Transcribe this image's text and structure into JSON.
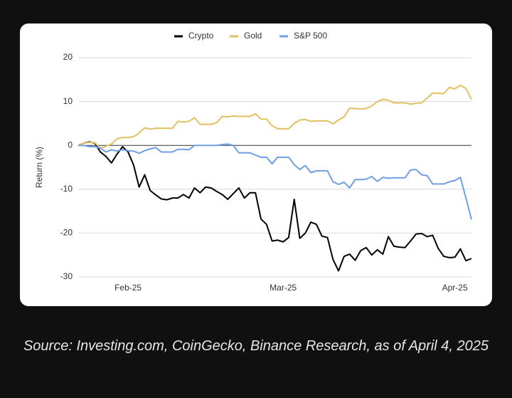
{
  "chart_data": {
    "type": "line",
    "categories": [
      null,
      null,
      null,
      null,
      null,
      null,
      null,
      null,
      null,
      "Feb-25",
      null,
      null,
      null,
      null,
      null,
      null,
      null,
      null,
      null,
      null,
      null,
      null,
      null,
      null,
      null,
      null,
      null,
      null,
      null,
      null,
      null,
      null,
      null,
      null,
      null,
      null,
      null,
      "Mar-25",
      null,
      null,
      null,
      null,
      null,
      null,
      null,
      null,
      null,
      null,
      null,
      null,
      null,
      null,
      null,
      null,
      null,
      null,
      null,
      null,
      null,
      null,
      null,
      null,
      null,
      null,
      null,
      null,
      null,
      null,
      "Apr-25",
      null,
      null,
      null
    ],
    "series": [
      {
        "name": "Crypto",
        "color": "#000000",
        "values": [
          0,
          0.5,
          0.8,
          0.5,
          -1.5,
          -2.5,
          -4,
          -2,
          -0.3,
          -1.5,
          -4.5,
          -9.5,
          -6.7,
          -10.3,
          -11.3,
          -12.2,
          -12.4,
          -12,
          -12,
          -11.2,
          -12,
          -9.7,
          -10.8,
          -9.5,
          -9.7,
          -10.5,
          -11.2,
          -12.3,
          -11,
          -9.7,
          -12,
          -10.8,
          -10.8,
          -16.8,
          -18,
          -21.8,
          -21.6,
          -22,
          -21,
          -12.3,
          -21.2,
          -20,
          -17.5,
          -18,
          -20.7,
          -21,
          -26,
          -28.6,
          -25.3,
          -24.8,
          -26.2,
          -24,
          -23.3,
          -25,
          -23.8,
          -24.8,
          -20.8,
          -23,
          -23.2,
          -23.3,
          -21.8,
          -20.2,
          -20.1,
          -20.8,
          -20.5,
          -23.5,
          -25.3,
          -25.6,
          -25.5,
          -23.6,
          -26.3,
          -25.8
        ]
      },
      {
        "name": "Gold",
        "color": "#e4c160",
        "values": [
          0,
          0.5,
          0.7,
          0.6,
          -0.6,
          -0.2,
          0.3,
          1.5,
          1.8,
          1.8,
          2,
          2.8,
          4,
          3.7,
          3.9,
          3.9,
          3.9,
          3.9,
          5.5,
          5.3,
          5.5,
          6.3,
          4.8,
          4.8,
          4.8,
          5.2,
          6.6,
          6.5,
          6.7,
          6.6,
          6.6,
          6.6,
          7.2,
          6,
          6,
          4.5,
          3.8,
          3.8,
          3.8,
          5,
          5.8,
          5.9,
          5.5,
          5.6,
          5.6,
          5.6,
          4.9,
          5.8,
          6.5,
          8.5,
          8.4,
          8.3,
          8.4,
          9,
          10,
          10.5,
          10.3,
          9.7,
          9.7,
          9.7,
          9.4,
          9.6,
          9.7,
          10.8,
          11.9,
          11.9,
          11.8,
          13.2,
          12.9,
          13.7,
          13,
          10.5
        ]
      },
      {
        "name": "S&P 500",
        "color": "#6f9fe4",
        "values": [
          0,
          0,
          -0.3,
          -0.3,
          -0.6,
          -1.5,
          -1,
          -1.3,
          -1,
          -1.2,
          -1.3,
          -1.8,
          -1.2,
          -0.8,
          -0.5,
          -1.5,
          -1.5,
          -1.5,
          -0.9,
          -0.9,
          -1,
          0,
          0,
          0,
          0,
          0,
          0.2,
          0.3,
          0,
          -1.7,
          -1.7,
          -1.7,
          -2.2,
          -2.7,
          -2.7,
          -4.2,
          -2.7,
          -2.7,
          -2.7,
          -4.4,
          -5.5,
          -4.6,
          -6.2,
          -5.8,
          -5.8,
          -5.8,
          -8.3,
          -8.9,
          -8.4,
          -9.7,
          -7.8,
          -7.8,
          -7.7,
          -7.1,
          -8.2,
          -7.3,
          -7.5,
          -7.4,
          -7.4,
          -7.4,
          -5.6,
          -5.5,
          -6.7,
          -6.9,
          -8.8,
          -8.8,
          -8.8,
          -8.3,
          -8,
          -7.3,
          -12,
          -16.9
        ]
      }
    ],
    "ylabel": "Return (%)",
    "ylim": [
      -30,
      20
    ],
    "yticks": [
      20,
      10,
      0,
      -10,
      -20,
      -30
    ],
    "grid": true,
    "legend": "top"
  },
  "caption": "Source: Investing.com, CoinGecko, Binance Research, as of April 4, 2025"
}
